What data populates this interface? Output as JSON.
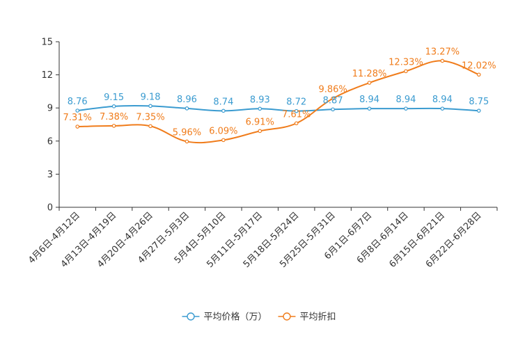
{
  "chart_data": {
    "type": "line",
    "title": "",
    "xlabel": "",
    "ylabel": "",
    "ylim": [
      0,
      15
    ],
    "yticks": [
      "0",
      "3",
      "6",
      "9",
      "12",
      "15"
    ],
    "categories": [
      "4月6日-4月12日",
      "4月13日-4月19日",
      "4月20日-4月26日",
      "4月27日-5月3日",
      "5月4日-5月10日",
      "5月11日-5月17日",
      "5月18日-5月24日",
      "5月25日-5月31日",
      "6月1日-6月7日",
      "6月8日-6月14日",
      "6月15日-6月21日",
      "6月22日-6月28日"
    ],
    "series": [
      {
        "name": "平均价格（万）",
        "color": "#3a9bd0",
        "values": [
          8.76,
          9.15,
          9.18,
          8.96,
          8.74,
          8.93,
          8.72,
          8.87,
          8.94,
          8.94,
          8.94,
          8.75
        ],
        "labels": [
          "8.76",
          "9.15",
          "9.18",
          "8.96",
          "8.74",
          "8.93",
          "8.72",
          "8.87",
          "8.94",
          "8.94",
          "8.94",
          "8.75"
        ]
      },
      {
        "name": "平均折扣",
        "color": "#f07c1b",
        "values": [
          7.31,
          7.38,
          7.35,
          5.96,
          6.09,
          6.91,
          7.61,
          9.86,
          11.28,
          12.33,
          13.27,
          12.02
        ],
        "labels": [
          "7.31%",
          "7.38%",
          "7.35%",
          "5.96%",
          "6.09%",
          "6.91%",
          "7.61%",
          "9.86%",
          "11.28%",
          "12.33%",
          "13.27%",
          "12.02%"
        ]
      }
    ],
    "legend_position": "bottom-center",
    "grid": false
  }
}
